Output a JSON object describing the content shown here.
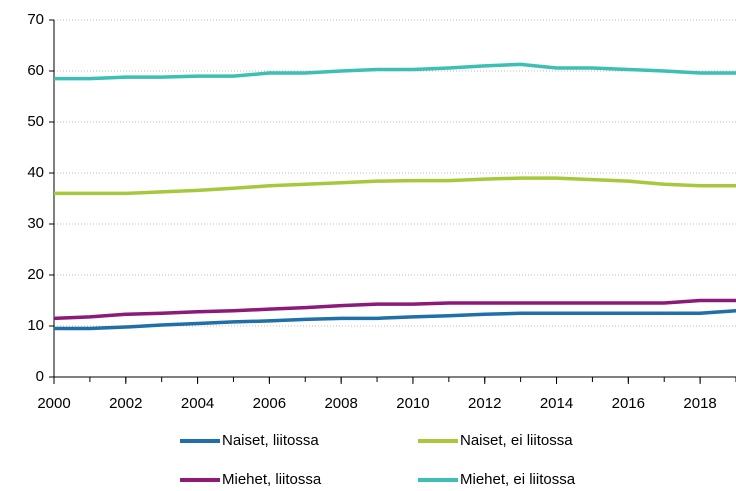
{
  "chart_data": {
    "type": "line",
    "x": [
      2000,
      2001,
      2002,
      2003,
      2004,
      2005,
      2006,
      2007,
      2008,
      2009,
      2010,
      2011,
      2012,
      2013,
      2014,
      2015,
      2016,
      2017,
      2018,
      2019
    ],
    "series": [
      {
        "name": "Naiset, liitossa",
        "color": "#1f6fa8",
        "values": [
          9.5,
          9.5,
          9.8,
          10.2,
          10.5,
          10.8,
          11,
          11.3,
          11.5,
          11.5,
          11.8,
          12,
          12.3,
          12.5,
          12.5,
          12.5,
          12.5,
          12.5,
          12.5,
          13
        ]
      },
      {
        "name": "Naiset, ei liitossa",
        "color": "#a8c83c",
        "values": [
          36,
          36,
          36,
          36.3,
          36.6,
          37,
          37.5,
          37.8,
          38.1,
          38.4,
          38.5,
          38.5,
          38.8,
          39,
          39,
          38.7,
          38.4,
          37.8,
          37.5,
          37.5
        ]
      },
      {
        "name": "Miehet, liitossa",
        "color": "#8b1a7a",
        "values": [
          11.5,
          11.8,
          12.3,
          12.5,
          12.8,
          13,
          13.3,
          13.6,
          14,
          14.3,
          14.3,
          14.5,
          14.5,
          14.5,
          14.5,
          14.5,
          14.5,
          14.5,
          15,
          15
        ]
      },
      {
        "name": "Miehet, ei liitossa",
        "color": "#3cbfb4",
        "values": [
          58.5,
          58.5,
          58.8,
          58.8,
          59,
          59,
          59.6,
          59.6,
          60,
          60.3,
          60.3,
          60.6,
          61,
          61.3,
          60.6,
          60.6,
          60.3,
          60,
          59.6,
          59.6
        ]
      }
    ],
    "xlim": [
      2000,
      2019
    ],
    "xticks": [
      2000,
      2002,
      2004,
      2006,
      2008,
      2010,
      2012,
      2014,
      2016,
      2018
    ],
    "ylim": [
      0,
      70
    ],
    "yticks": [
      0,
      10,
      20,
      30,
      40,
      50,
      60,
      70
    ],
    "grid": true
  }
}
